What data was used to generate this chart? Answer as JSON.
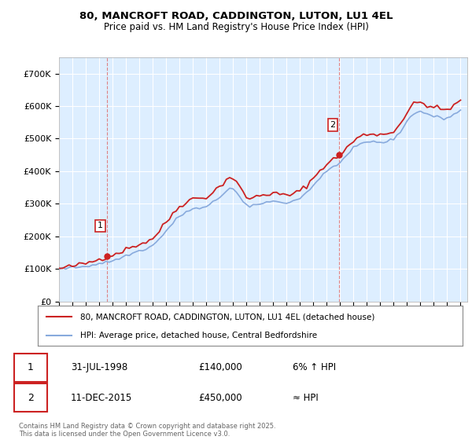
{
  "title1": "80, MANCROFT ROAD, CADDINGTON, LUTON, LU1 4EL",
  "title2": "Price paid vs. HM Land Registry's House Price Index (HPI)",
  "legend_line1": "80, MANCROFT ROAD, CADDINGTON, LUTON, LU1 4EL (detached house)",
  "legend_line2": "HPI: Average price, detached house, Central Bedfordshire",
  "annotation1_date": "31-JUL-1998",
  "annotation1_price": "£140,000",
  "annotation1_note": "6% ↑ HPI",
  "annotation2_date": "11-DEC-2015",
  "annotation2_price": "£450,000",
  "annotation2_note": "≈ HPI",
  "footnote": "Contains HM Land Registry data © Crown copyright and database right 2025.\nThis data is licensed under the Open Government Licence v3.0.",
  "ylim": [
    0,
    750000
  ],
  "yticks": [
    0,
    100000,
    200000,
    300000,
    400000,
    500000,
    600000,
    700000
  ],
  "ytick_labels": [
    "£0",
    "£100K",
    "£200K",
    "£300K",
    "£400K",
    "£500K",
    "£600K",
    "£700K"
  ],
  "background_color": "#ffffff",
  "plot_bg_color": "#ddeeff",
  "grid_color": "#ffffff",
  "red_color": "#cc2222",
  "blue_color": "#88aadd",
  "annotation_box_color": "#cc2222",
  "point1_x": 1998.58,
  "point1_y": 140000,
  "point2_x": 2015.95,
  "point2_y": 450000,
  "xmin": 1995,
  "xmax": 2025.5,
  "xticks": [
    1995,
    1996,
    1997,
    1998,
    1999,
    2000,
    2001,
    2002,
    2003,
    2004,
    2005,
    2006,
    2007,
    2008,
    2009,
    2010,
    2011,
    2012,
    2013,
    2014,
    2015,
    2016,
    2017,
    2018,
    2019,
    2020,
    2021,
    2022,
    2023,
    2024,
    2025
  ]
}
